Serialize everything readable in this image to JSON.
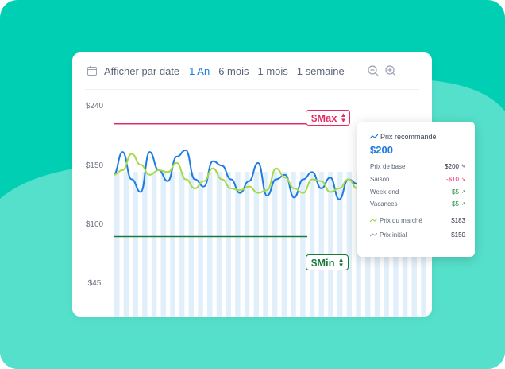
{
  "toolbar": {
    "date_label": "Afficher par date",
    "tabs": [
      "1 An",
      "6 mois",
      "1 mois",
      "1 semaine"
    ],
    "active_tab": "1 An"
  },
  "y_ticks": [
    "$240",
    "$150",
    "$100",
    "$45"
  ],
  "max_tag": "$Max",
  "min_tag": "$Min",
  "tooltip": {
    "title": "Prix recommandé",
    "price": "$200",
    "rows": [
      {
        "label": "Prix de base",
        "value": "$200"
      },
      {
        "label": "Saison",
        "value": "-$10"
      },
      {
        "label": "Week-end",
        "value": "$5"
      },
      {
        "label": "Vacances",
        "value": "$5"
      }
    ],
    "market": {
      "label": "Prix du marché",
      "value": "$183"
    },
    "initial": {
      "label": "Prix initial",
      "value": "$150"
    }
  },
  "colors": {
    "background": "#00cfb4",
    "accent": "#1e7be0",
    "market_line": "#a6d94a",
    "max_line": "#e42c64",
    "min_line": "#1a7a3a",
    "bars": "#e1effb"
  },
  "chart_data": {
    "type": "line",
    "y_ticks": [
      240,
      150,
      100,
      45
    ],
    "series": [
      {
        "name": "Prix recommandé",
        "color": "#1e7be0",
        "values": [
          165,
          190,
          160,
          146,
          190,
          170,
          158,
          185,
          192,
          160,
          152,
          180,
          175,
          160,
          145,
          158,
          178,
          142,
          160,
          165,
          140,
          160,
          168,
          150,
          162,
          138,
          160,
          155,
          142,
          170,
          160,
          150,
          172,
          145,
          170,
          172
        ]
      },
      {
        "name": "Prix du marché",
        "color": "#a6d94a",
        "values": [
          165,
          170,
          188,
          176,
          165,
          170,
          168,
          178,
          160,
          150,
          158,
          172,
          160,
          150,
          148,
          152,
          145,
          148,
          172,
          162,
          150,
          145,
          160,
          158,
          146,
          150,
          160,
          150,
          148,
          158,
          165,
          150,
          160,
          155,
          168,
          172
        ]
      }
    ],
    "max_value": 221,
    "min_value": 97
  }
}
